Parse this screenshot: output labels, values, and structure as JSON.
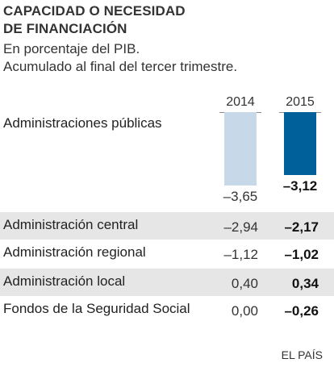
{
  "title_line1": "CAPACIDAD O NECESIDAD",
  "title_line2": "DE FINANCIACIÓN",
  "subtitle_line1": "En porcentaje del PIB.",
  "subtitle_line2": "Acumulado al final del tercer trimestre.",
  "source": "EL PAÍS",
  "colors": {
    "y2014": "#c7d9e8",
    "y2015": "#00619a",
    "shade": "#e6e6e6"
  },
  "chart_data": {
    "type": "bar",
    "categories": [
      "Administraciones públicas"
    ],
    "years": [
      "2014",
      "2015"
    ],
    "series": [
      {
        "name": "2014",
        "values": [
          -3.65
        ]
      },
      {
        "name": "2015",
        "values": [
          -3.12
        ]
      }
    ],
    "value_labels": {
      "2014": "–3,65",
      "2015": "–3,12"
    },
    "table": {
      "columns": [
        "2014",
        "2015"
      ],
      "rows": [
        {
          "label": "Administración central",
          "v2014": "–2,94",
          "v2015": "–2,17",
          "shaded": true
        },
        {
          "label": "Administración regional",
          "v2014": "–1,12",
          "v2015": "–1,02",
          "shaded": false
        },
        {
          "label": "Administración local",
          "v2014": "0,40",
          "v2015": "0,34",
          "shaded": true
        },
        {
          "label": "Fondos de la Seguridad Social",
          "v2014": "0,00",
          "v2015": "–0,26",
          "shaded": false
        }
      ]
    }
  }
}
